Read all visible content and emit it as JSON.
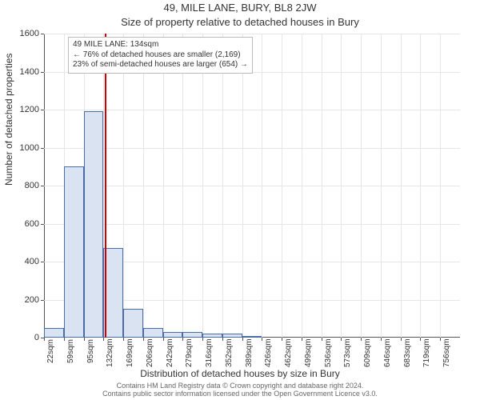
{
  "title_main": "49, MILE LANE, BURY, BL8 2JW",
  "title_sub": "Size of property relative to detached houses in Bury",
  "ylabel": "Number of detached properties",
  "xlabel": "Distribution of detached houses by size in Bury",
  "footer_line1": "Contains HM Land Registry data © Crown copyright and database right 2024.",
  "footer_line2": "Contains public sector information licensed under the Open Government Licence v3.0.",
  "chart": {
    "type": "histogram",
    "background_color": "#ffffff",
    "grid_color": "#e6e6e6",
    "axis_color": "#555555",
    "bar_fill": "#d9e3f2",
    "bar_stroke": "#4a6ca8",
    "marker_color": "#cc0000",
    "tooltip_border": "#bbbbbb",
    "tooltip_bg": "#ffffff",
    "text_color": "#333333",
    "title_fontsize": 13,
    "label_fontsize": 12,
    "tick_fontsize": 11,
    "xtick_fontsize": 10,
    "ymax": 1600,
    "ytick_step": 200,
    "xmin_sqm": 22,
    "xbin_sqm": 36.7,
    "bars": [
      50,
      900,
      1190,
      470,
      150,
      50,
      30,
      30,
      20,
      20,
      10,
      0,
      0,
      0,
      0,
      0,
      0,
      0,
      0,
      0,
      0
    ],
    "xticks": [
      "22sqm",
      "59sqm",
      "95sqm",
      "132sqm",
      "169sqm",
      "206sqm",
      "242sqm",
      "279sqm",
      "316sqm",
      "352sqm",
      "389sqm",
      "426sqm",
      "462sqm",
      "499sqm",
      "536sqm",
      "573sqm",
      "609sqm",
      "646sqm",
      "683sqm",
      "719sqm",
      "756sqm"
    ],
    "marker_sqm": 134,
    "tooltip": {
      "line1": "49 MILE LANE: 134sqm",
      "line2": "← 76% of detached houses are smaller (2,169)",
      "line3": "23% of semi-detached houses are larger (654) →"
    }
  }
}
